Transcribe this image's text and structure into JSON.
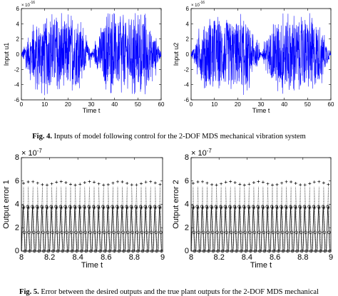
{
  "fig4_caption": {
    "label": "Fig. 4.",
    "text": "Inputs of model following control for the 2-DOF MDS mechanical vibration system"
  },
  "fig5_caption": {
    "label": "Fig. 5.",
    "text": "Error between the desired outputs and the true plant outputs for the 2-DOF MDS mechanical"
  },
  "colors": {
    "signal": "#0000ff",
    "error": "#000000",
    "axis": "#000000"
  },
  "chart_data": [
    {
      "type": "line",
      "xlabel": "Time t",
      "ylabel": "Input u1",
      "exponent": "× 10^-16",
      "x_range": [
        0,
        60
      ],
      "y_range": [
        -6,
        6
      ],
      "x_ticks": [
        "0",
        "10",
        "20",
        "30",
        "40",
        "50",
        "60"
      ],
      "y_ticks": [
        "-6",
        "-4",
        "-2",
        "0",
        "2",
        "4",
        "6"
      ],
      "envelope_peak": 4.2,
      "envelope_minima_at": [
        0,
        30,
        60
      ],
      "grid": false
    },
    {
      "type": "line",
      "xlabel": "Time t",
      "ylabel": "Input u2",
      "exponent": "× 10^-16",
      "x_range": [
        0,
        60
      ],
      "y_range": [
        -6,
        6
      ],
      "x_ticks": [
        "0",
        "10",
        "20",
        "30",
        "40",
        "50",
        "60"
      ],
      "y_ticks": [
        "-6",
        "-4",
        "-2",
        "0",
        "2",
        "4",
        "6"
      ],
      "envelope_peak": 4.2,
      "envelope_minima_at": [
        0,
        30,
        60
      ],
      "grid": false
    },
    {
      "type": "line",
      "xlabel": "Time t",
      "ylabel": "Output error 1",
      "exponent": "× 10^-7",
      "x_range": [
        8,
        9
      ],
      "y_range": [
        0,
        8
      ],
      "x_ticks": [
        "8",
        "8.2",
        "8.4",
        "8.6",
        "8.8",
        "9"
      ],
      "y_ticks": [
        "0",
        "2",
        "4",
        "6",
        "8"
      ],
      "periods": 30,
      "series_peaks": {
        "plus_upper": 5.8,
        "plus_lower": 3.7,
        "circle": 3.9,
        "dotted": 5.5
      },
      "grid": false
    },
    {
      "type": "line",
      "xlabel": "Time t",
      "ylabel": "Output error 2",
      "exponent": "× 10^-7",
      "x_range": [
        8,
        9
      ],
      "y_range": [
        0,
        8
      ],
      "x_ticks": [
        "8",
        "8.2",
        "8.4",
        "8.6",
        "8.8",
        "9"
      ],
      "y_ticks": [
        "0",
        "2",
        "4",
        "6",
        "8"
      ],
      "periods": 30,
      "series_peaks": {
        "plus_upper": 5.8,
        "plus_lower": 3.7,
        "circle": 3.9,
        "dotted": 5.5
      },
      "grid": false
    }
  ]
}
